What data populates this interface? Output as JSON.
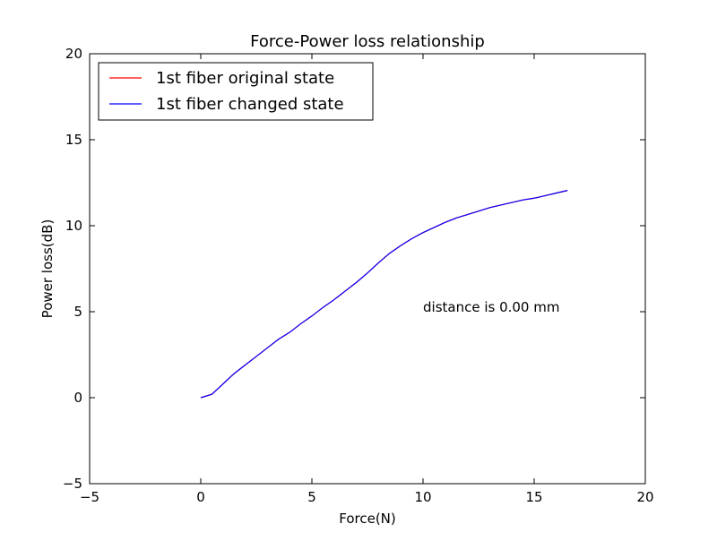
{
  "chart_data": {
    "type": "line",
    "title": "Force-Power loss relationship",
    "xlabel": "Force(N)",
    "ylabel": "Power loss(dB)",
    "xlim": [
      -5,
      20
    ],
    "ylim": [
      -5,
      20
    ],
    "xticks": [
      -5,
      0,
      5,
      10,
      15,
      20
    ],
    "yticks": [
      -5,
      0,
      5,
      10,
      15,
      20
    ],
    "xtick_labels": [
      "−5",
      "0",
      "5",
      "10",
      "15",
      "20"
    ],
    "ytick_labels": [
      "−5",
      "0",
      "5",
      "10",
      "15",
      "20"
    ],
    "grid": false,
    "legend_position": "top-left",
    "annotation": "distance is 0.00 mm",
    "series": [
      {
        "name": "1st fiber original state",
        "color": "#ff0000",
        "x": [
          0,
          0.5,
          1,
          1.5,
          2,
          2.5,
          3,
          3.5,
          4,
          4.5,
          5,
          5.5,
          6,
          6.5,
          7,
          7.5,
          8,
          8.5,
          9,
          9.5,
          10,
          10.5,
          11,
          11.5,
          12,
          12.5,
          13,
          13.5,
          14,
          14.5,
          15,
          15.5,
          16,
          16.5
        ],
        "y": [
          0,
          0.2,
          0.8,
          1.4,
          1.9,
          2.4,
          2.9,
          3.4,
          3.8,
          4.3,
          4.75,
          5.25,
          5.7,
          6.2,
          6.7,
          7.25,
          7.85,
          8.4,
          8.85,
          9.25,
          9.6,
          9.9,
          10.2,
          10.45,
          10.65,
          10.85,
          11.05,
          11.2,
          11.35,
          11.5,
          11.6,
          11.75,
          11.9,
          12.05
        ]
      },
      {
        "name": "1st fiber changed state",
        "color": "#0000ff",
        "x": [
          0,
          0.5,
          1,
          1.5,
          2,
          2.5,
          3,
          3.5,
          4,
          4.5,
          5,
          5.5,
          6,
          6.5,
          7,
          7.5,
          8,
          8.5,
          9,
          9.5,
          10,
          10.5,
          11,
          11.5,
          12,
          12.5,
          13,
          13.5,
          14,
          14.5,
          15,
          15.5,
          16,
          16.5
        ],
        "y": [
          0,
          0.2,
          0.8,
          1.4,
          1.9,
          2.4,
          2.9,
          3.4,
          3.8,
          4.3,
          4.75,
          5.25,
          5.7,
          6.2,
          6.7,
          7.25,
          7.85,
          8.4,
          8.85,
          9.25,
          9.6,
          9.9,
          10.2,
          10.45,
          10.65,
          10.85,
          11.05,
          11.2,
          11.35,
          11.5,
          11.6,
          11.75,
          11.9,
          12.05
        ]
      }
    ]
  }
}
